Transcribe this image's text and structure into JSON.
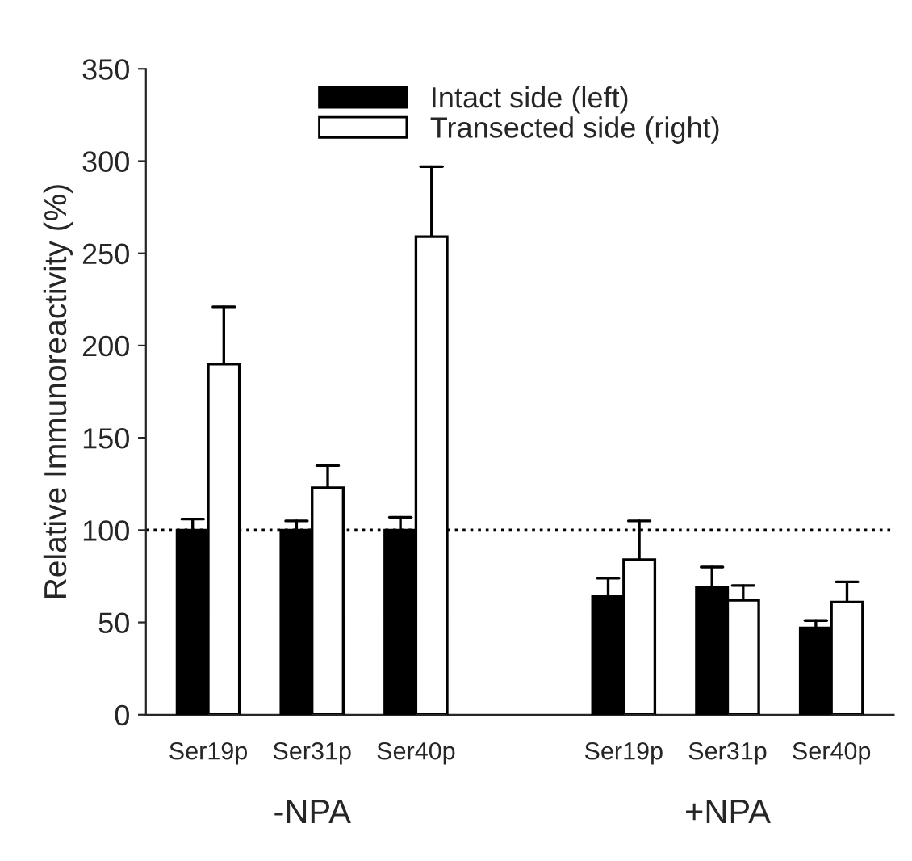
{
  "chart_data": {
    "type": "bar",
    "ylabel": "Relative Immunoreactivity (%)",
    "categories": [
      "Ser19p",
      "Ser31p",
      "Ser40p",
      null,
      "Ser19p",
      "Ser31p",
      "Ser40p"
    ],
    "series": [
      {
        "name": "Intact side (left)",
        "color": "#000000",
        "values": [
          100,
          100,
          100,
          null,
          64,
          69,
          47
        ],
        "errors": [
          [
            100,
            106
          ],
          [
            100,
            105
          ],
          [
            100,
            107
          ],
          null,
          [
            64,
            74
          ],
          [
            69,
            80
          ],
          [
            47,
            51
          ]
        ]
      },
      {
        "name": "Transected side (right)",
        "color": "#ffffff",
        "values": [
          190,
          123,
          259,
          null,
          84,
          62,
          61
        ],
        "errors": [
          [
            190,
            221
          ],
          [
            123,
            135
          ],
          [
            259,
            297
          ],
          null,
          [
            84,
            105
          ],
          [
            62,
            70
          ],
          [
            61,
            72
          ]
        ]
      }
    ],
    "ylim": [
      0,
      350
    ],
    "yticks": [
      0,
      50,
      100,
      150,
      200,
      250,
      300,
      350
    ],
    "ref_lines": [
      {
        "axis": "y",
        "value": 100,
        "line_style": "dotted"
      }
    ],
    "annotations": [
      "-NPA",
      "+NPA"
    ],
    "legend": "top",
    "grid": false
  }
}
